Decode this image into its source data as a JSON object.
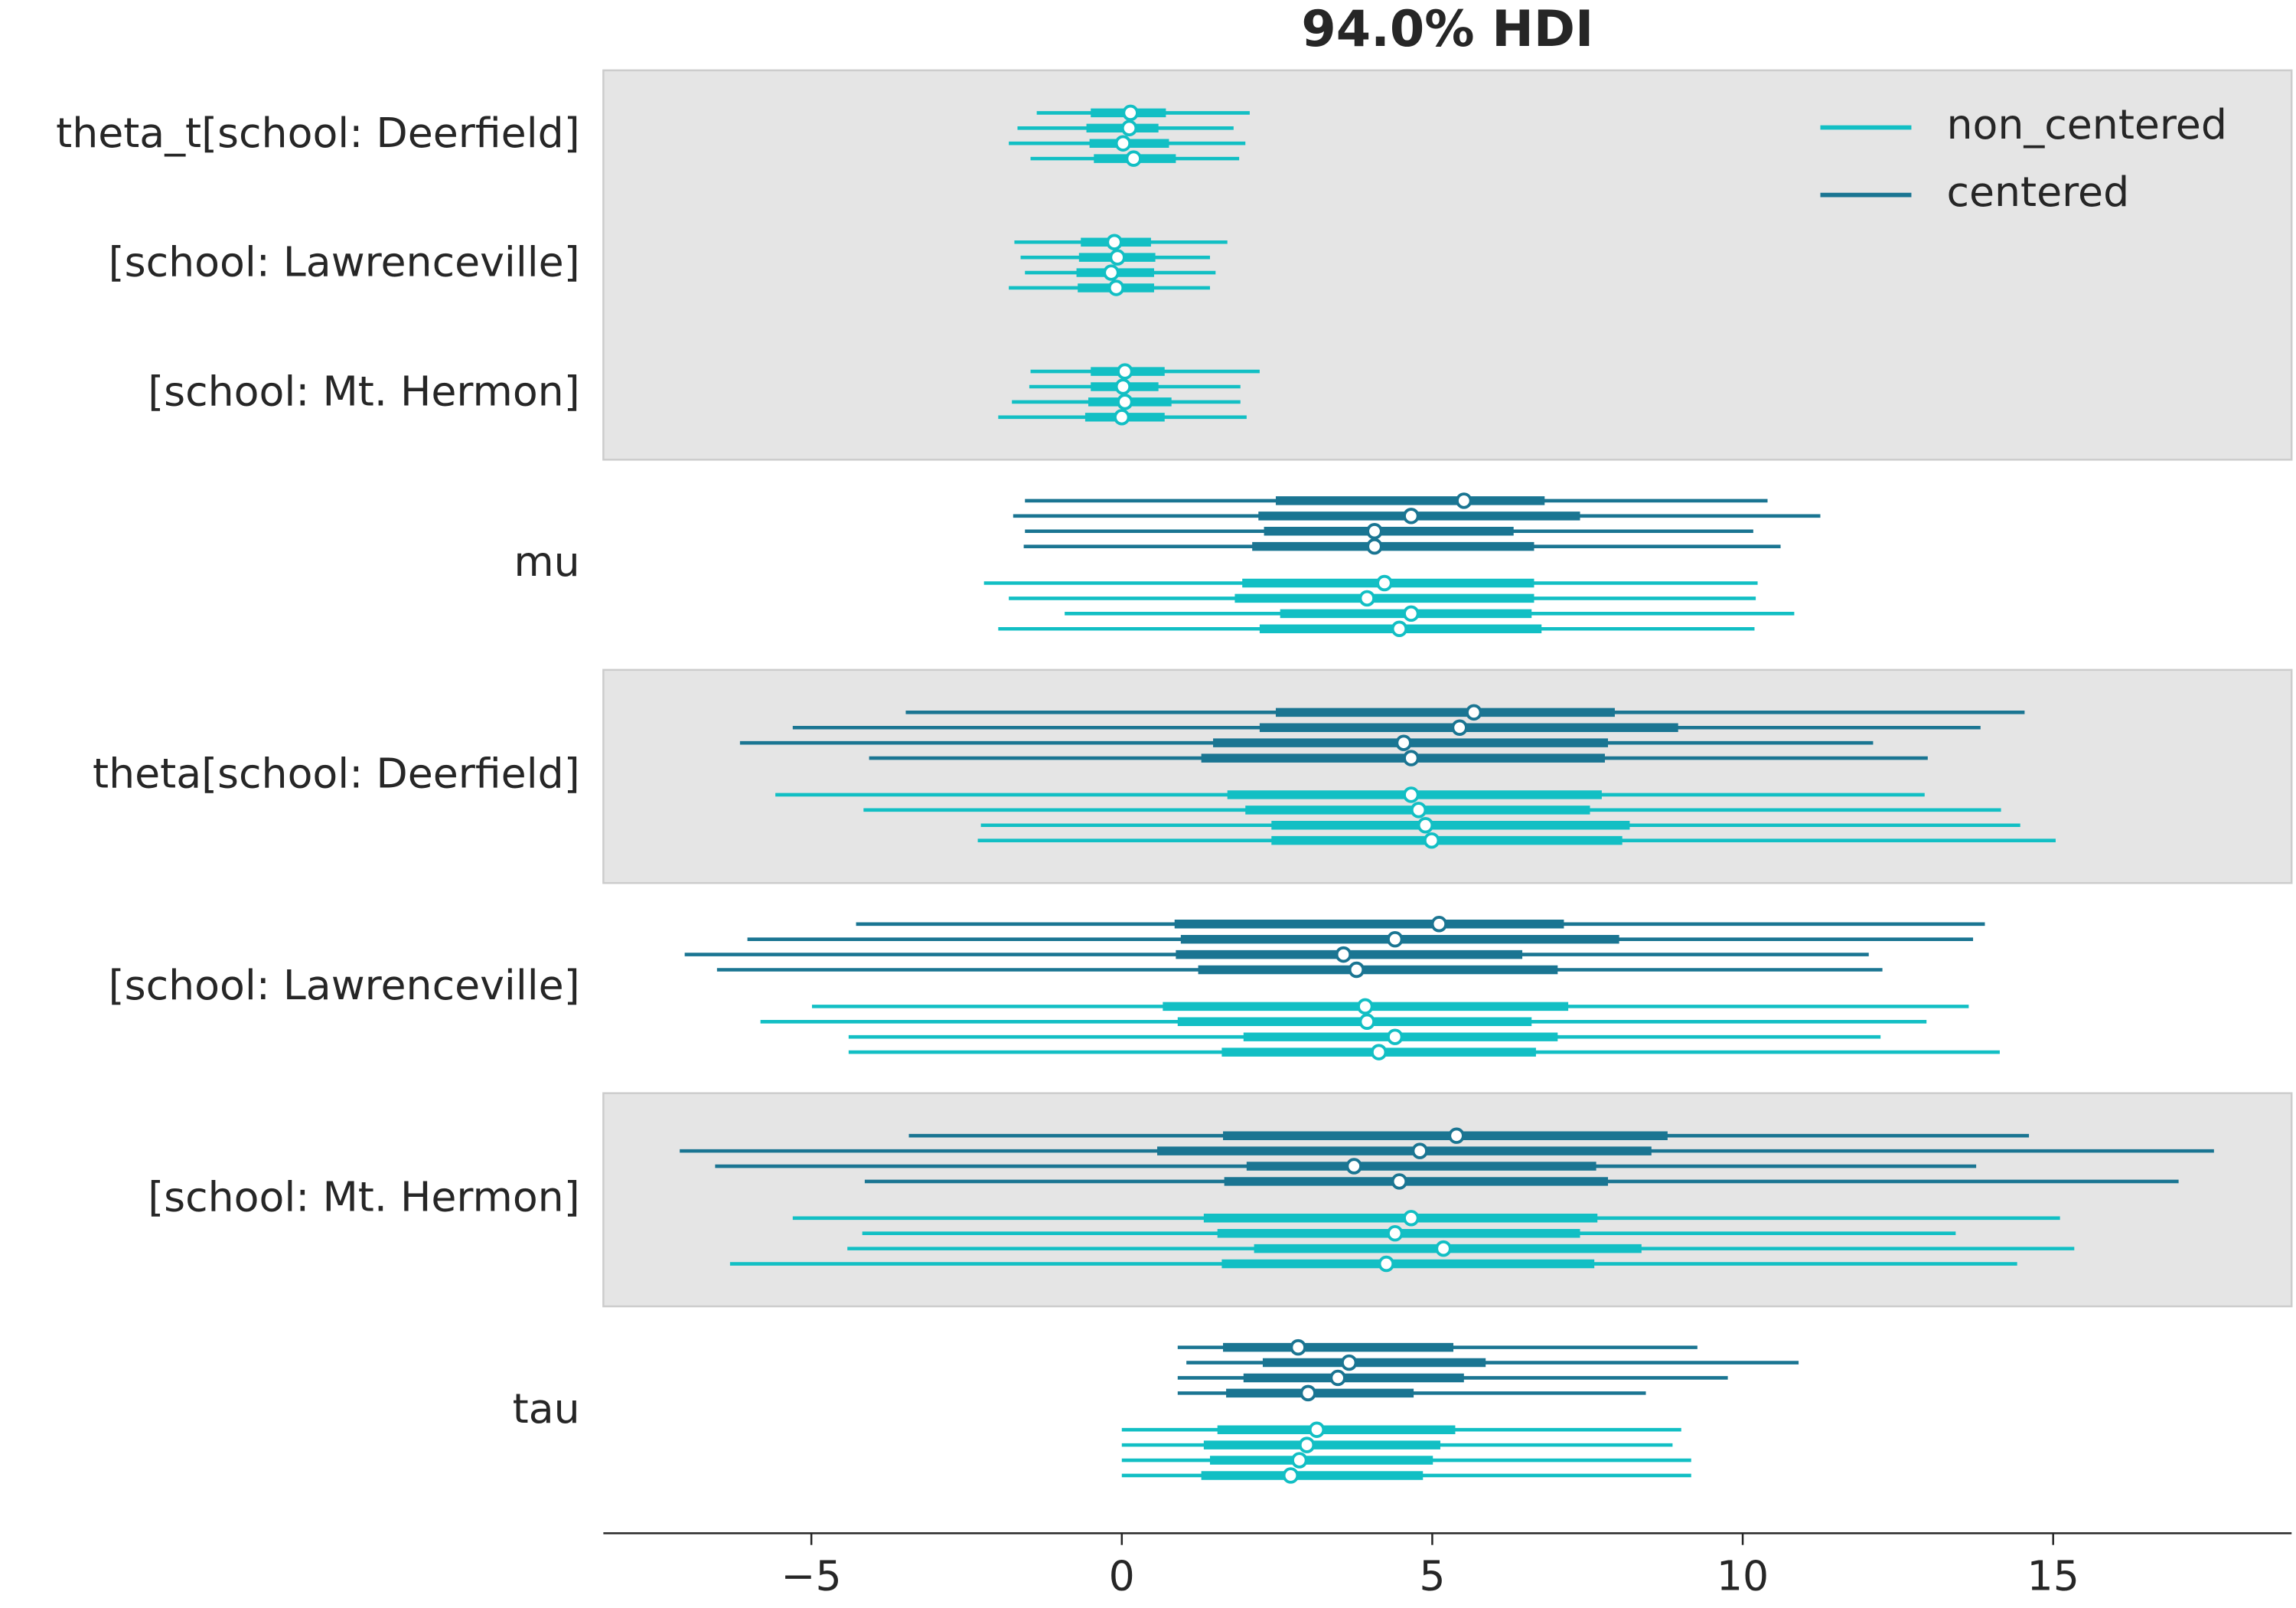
{
  "chart_data": {
    "type": "forest",
    "title": "94.0% HDI",
    "xlim": [
      -8.35,
      18.84
    ],
    "xticks": [
      {
        "value": -5,
        "label": "−5"
      },
      0,
      5,
      10,
      15
    ],
    "legend": "upper right",
    "series": [
      {
        "name": "non_centered",
        "color": "#12bfc4"
      },
      {
        "name": "centered",
        "color": "#1a7592"
      }
    ],
    "rows": [
      {
        "label": "theta_t[school: Deerfield]",
        "shaded": true,
        "chains": [
          [
            {
              "hdi": [
                -1.37,
                2.06
              ],
              "iqr": [
                -0.5,
                0.71
              ],
              "point": 0.14
            },
            {
              "hdi": [
                -1.68,
                1.8
              ],
              "iqr": [
                -0.57,
                0.59
              ],
              "point": 0.12
            },
            {
              "hdi": [
                -1.82,
                1.99
              ],
              "iqr": [
                -0.52,
                0.76
              ],
              "point": 0.02
            },
            {
              "hdi": [
                -1.47,
                1.89
              ],
              "iqr": [
                -0.45,
                0.87
              ],
              "point": 0.19
            }
          ],
          []
        ]
      },
      {
        "label": "[school: Lawrenceville]",
        "shaded": true,
        "chains": [
          [
            {
              "hdi": [
                -1.73,
                1.7
              ],
              "iqr": [
                -0.66,
                0.47
              ],
              "point": -0.12
            },
            {
              "hdi": [
                -1.63,
                1.42
              ],
              "iqr": [
                -0.69,
                0.54
              ],
              "point": -0.07
            },
            {
              "hdi": [
                -1.56,
                1.51
              ],
              "iqr": [
                -0.73,
                0.52
              ],
              "point": -0.17
            },
            {
              "hdi": [
                -1.82,
                1.42
              ],
              "iqr": [
                -0.71,
                0.52
              ],
              "point": -0.09
            }
          ],
          []
        ]
      },
      {
        "label": "[school: Mt. Hermon]",
        "shaded": true,
        "chains": [
          [
            {
              "hdi": [
                -1.47,
                2.22
              ],
              "iqr": [
                -0.5,
                0.69
              ],
              "point": 0.05
            },
            {
              "hdi": [
                -1.49,
                1.91
              ],
              "iqr": [
                -0.5,
                0.59
              ],
              "point": 0.02
            },
            {
              "hdi": [
                -1.77,
                1.91
              ],
              "iqr": [
                -0.54,
                0.8
              ],
              "point": 0.05
            },
            {
              "hdi": [
                -1.99,
                2.01
              ],
              "iqr": [
                -0.59,
                0.69
              ],
              "point": 0.0
            }
          ],
          []
        ]
      },
      {
        "label": "mu",
        "shaded": false,
        "chains": [
          [
            {
              "hdi": [
                -2.22,
                10.24
              ],
              "iqr": [
                1.94,
                6.64
              ],
              "point": 4.23
            },
            {
              "hdi": [
                -1.82,
                10.21
              ],
              "iqr": [
                1.82,
                6.64
              ],
              "point": 3.95
            },
            {
              "hdi": [
                -0.92,
                10.83
              ],
              "iqr": [
                2.55,
                6.6
              ],
              "point": 4.66
            },
            {
              "hdi": [
                -1.99,
                10.19
              ],
              "iqr": [
                2.22,
                6.76
              ],
              "point": 4.47
            }
          ],
          [
            {
              "hdi": [
                -1.56,
                10.4
              ],
              "iqr": [
                2.48,
                6.81
              ],
              "point": 5.51
            },
            {
              "hdi": [
                -1.75,
                11.25
              ],
              "iqr": [
                2.2,
                7.38
              ],
              "point": 4.66
            },
            {
              "hdi": [
                -1.56,
                10.17
              ],
              "iqr": [
                2.29,
                6.31
              ],
              "point": 4.07
            },
            {
              "hdi": [
                -1.58,
                10.61
              ],
              "iqr": [
                2.1,
                6.64
              ],
              "point": 4.07
            }
          ]
        ]
      },
      {
        "label": "theta[school: Deerfield]",
        "shaded": true,
        "chains": [
          [
            {
              "hdi": [
                -5.58,
                12.93
              ],
              "iqr": [
                1.7,
                7.73
              ],
              "point": 4.66
            },
            {
              "hdi": [
                -4.16,
                14.16
              ],
              "iqr": [
                1.99,
                7.54
              ],
              "point": 4.78
            },
            {
              "hdi": [
                -2.27,
                14.47
              ],
              "iqr": [
                2.41,
                8.18
              ],
              "point": 4.89
            },
            {
              "hdi": [
                -2.32,
                15.04
              ],
              "iqr": [
                2.41,
                8.06
              ],
              "point": 4.99
            }
          ],
          [
            {
              "hdi": [
                -3.48,
                14.54
              ],
              "iqr": [
                2.48,
                7.94
              ],
              "point": 5.67
            },
            {
              "hdi": [
                -5.3,
                13.83
              ],
              "iqr": [
                2.22,
                8.96
              ],
              "point": 5.44
            },
            {
              "hdi": [
                -6.15,
                12.1
              ],
              "iqr": [
                1.47,
                7.83
              ],
              "point": 4.54
            },
            {
              "hdi": [
                -4.07,
                12.98
              ],
              "iqr": [
                1.28,
                7.78
              ],
              "point": 4.66
            }
          ]
        ]
      },
      {
        "label": "[school: Lawrenceville]",
        "shaded": false,
        "chains": [
          [
            {
              "hdi": [
                -4.99,
                13.64
              ],
              "iqr": [
                0.66,
                7.19
              ],
              "point": 3.92
            },
            {
              "hdi": [
                -5.82,
                12.96
              ],
              "iqr": [
                0.9,
                6.6
              ],
              "point": 3.95
            },
            {
              "hdi": [
                -4.4,
                12.22
              ],
              "iqr": [
                1.96,
                7.02
              ],
              "point": 4.4
            },
            {
              "hdi": [
                -4.4,
                14.14
              ],
              "iqr": [
                1.61,
                6.67
              ],
              "point": 4.14
            }
          ],
          [
            {
              "hdi": [
                -4.28,
                13.9
              ],
              "iqr": [
                0.85,
                7.12
              ],
              "point": 5.11
            },
            {
              "hdi": [
                -6.03,
                13.71
              ],
              "iqr": [
                0.95,
                8.01
              ],
              "point": 4.4
            },
            {
              "hdi": [
                -7.04,
                12.03
              ],
              "iqr": [
                0.87,
                6.45
              ],
              "point": 3.57
            },
            {
              "hdi": [
                -6.52,
                12.25
              ],
              "iqr": [
                1.23,
                7.02
              ],
              "point": 3.78
            }
          ]
        ]
      },
      {
        "label": "[school: Mt. Hermon]",
        "shaded": true,
        "chains": [
          [
            {
              "hdi": [
                -5.3,
                15.11
              ],
              "iqr": [
                1.32,
                7.66
              ],
              "point": 4.66
            },
            {
              "hdi": [
                -4.18,
                13.43
              ],
              "iqr": [
                1.54,
                7.38
              ],
              "point": 4.4
            },
            {
              "hdi": [
                -4.42,
                15.34
              ],
              "iqr": [
                2.13,
                8.37
              ],
              "point": 5.18
            },
            {
              "hdi": [
                -6.31,
                14.42
              ],
              "iqr": [
                1.61,
                7.61
              ],
              "point": 4.26
            }
          ],
          [
            {
              "hdi": [
                -3.43,
                14.61
              ],
              "iqr": [
                1.63,
                8.79
              ],
              "point": 5.39
            },
            {
              "hdi": [
                -7.12,
                17.59
              ],
              "iqr": [
                0.57,
                8.53
              ],
              "point": 4.8
            },
            {
              "hdi": [
                -6.55,
                13.76
              ],
              "iqr": [
                2.01,
                7.64
              ],
              "point": 3.74
            },
            {
              "hdi": [
                -4.14,
                17.02
              ],
              "iqr": [
                1.65,
                7.83
              ],
              "point": 4.47
            }
          ]
        ]
      },
      {
        "label": "tau",
        "shaded": false,
        "chains": [
          [
            {
              "hdi": [
                0.0,
                9.01
              ],
              "iqr": [
                1.54,
                5.37
              ],
              "point": 3.14
            },
            {
              "hdi": [
                0.0,
                8.87
              ],
              "iqr": [
                1.32,
                5.13
              ],
              "point": 2.98
            },
            {
              "hdi": [
                0.0,
                9.17
              ],
              "iqr": [
                1.42,
                5.01
              ],
              "point": 2.86
            },
            {
              "hdi": [
                0.0,
                9.17
              ],
              "iqr": [
                1.28,
                4.85
              ],
              "point": 2.72
            }
          ],
          [
            {
              "hdi": [
                0.9,
                9.27
              ],
              "iqr": [
                1.63,
                5.34
              ],
              "point": 2.84
            },
            {
              "hdi": [
                1.04,
                10.9
              ],
              "iqr": [
                2.27,
                5.86
              ],
              "point": 3.66
            },
            {
              "hdi": [
                0.9,
                9.76
              ],
              "iqr": [
                1.96,
                5.51
              ],
              "point": 3.48
            },
            {
              "hdi": [
                0.9,
                8.44
              ],
              "iqr": [
                1.68,
                4.7
              ],
              "point": 3.0
            }
          ]
        ]
      }
    ]
  }
}
